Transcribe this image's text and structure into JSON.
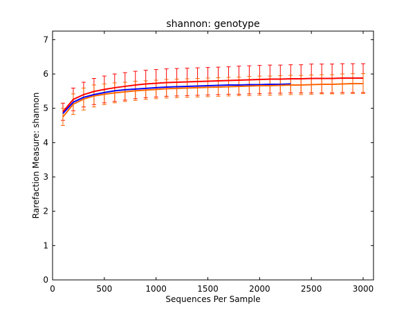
{
  "chart_data": {
    "type": "line",
    "title": "shannon: genotype",
    "xlabel": "Sequences Per Sample",
    "ylabel": "Rarefaction Measure: shannon",
    "xlim": [
      0,
      3100
    ],
    "ylim": [
      0,
      7.25
    ],
    "xticks": [
      "0",
      "500",
      "1000",
      "1500",
      "2000",
      "2500",
      "3000"
    ],
    "yticks": [
      "0",
      "1",
      "2",
      "3",
      "4",
      "5",
      "6",
      "7"
    ],
    "grid": false,
    "legend": "none",
    "series": [
      {
        "color": "#ff0000",
        "x": [
          100,
          200,
          300,
          400,
          500,
          600,
          700,
          800,
          900,
          1000,
          1100,
          1200,
          1300,
          1400,
          1500,
          1600,
          1700,
          1800,
          1900,
          2000,
          2100,
          2200,
          2300,
          2400,
          2500,
          2600,
          2700,
          2800,
          2900,
          3000
        ],
        "y": [
          4.9,
          5.26,
          5.4,
          5.49,
          5.55,
          5.6,
          5.64,
          5.68,
          5.71,
          5.73,
          5.75,
          5.76,
          5.77,
          5.78,
          5.79,
          5.8,
          5.81,
          5.82,
          5.83,
          5.84,
          5.85,
          5.85,
          5.86,
          5.86,
          5.87,
          5.87,
          5.87,
          5.88,
          5.88,
          5.88
        ],
        "err": [
          0.25,
          0.33,
          0.36,
          0.38,
          0.39,
          0.4,
          0.4,
          0.4,
          0.4,
          0.4,
          0.4,
          0.4,
          0.4,
          0.4,
          0.4,
          0.4,
          0.4,
          0.41,
          0.41,
          0.41,
          0.41,
          0.41,
          0.41,
          0.41,
          0.42,
          0.42,
          0.42,
          0.42,
          0.42,
          0.42
        ]
      },
      {
        "color": "#0000ff",
        "x": [
          100,
          200,
          300,
          400,
          500,
          600,
          700,
          800,
          900,
          1000,
          1100,
          1200,
          1300,
          1400,
          1500,
          1600,
          1700,
          1800,
          1900,
          2000,
          2100,
          2200,
          2300
        ],
        "y": [
          4.85,
          5.18,
          5.32,
          5.4,
          5.46,
          5.51,
          5.54,
          5.56,
          5.58,
          5.6,
          5.62,
          5.63,
          5.64,
          5.65,
          5.66,
          5.67,
          5.68,
          5.68,
          5.69,
          5.69,
          5.7,
          5.7,
          5.71
        ],
        "err": []
      },
      {
        "color": "#ff6600",
        "x": [
          100,
          200,
          300,
          400,
          500,
          600,
          700,
          800,
          900,
          1000,
          1100,
          1200,
          1300,
          1400,
          1500,
          1600,
          1700,
          1800,
          1900,
          2000,
          2100,
          2200,
          2300,
          2400,
          2500,
          2600,
          2700,
          2800,
          2900,
          3000
        ],
        "y": [
          4.75,
          5.12,
          5.27,
          5.36,
          5.41,
          5.45,
          5.48,
          5.51,
          5.53,
          5.55,
          5.57,
          5.58,
          5.59,
          5.6,
          5.61,
          5.62,
          5.63,
          5.64,
          5.65,
          5.66,
          5.66,
          5.67,
          5.68,
          5.68,
          5.69,
          5.7,
          5.7,
          5.71,
          5.72,
          5.72
        ],
        "err": [
          0.25,
          0.3,
          0.32,
          0.32,
          0.3,
          0.29,
          0.28,
          0.28,
          0.27,
          0.27,
          0.27,
          0.27,
          0.27,
          0.27,
          0.27,
          0.27,
          0.27,
          0.27,
          0.28,
          0.28,
          0.28,
          0.28,
          0.28,
          0.28,
          0.28,
          0.28,
          0.28,
          0.29,
          0.29,
          0.29
        ]
      }
    ]
  }
}
